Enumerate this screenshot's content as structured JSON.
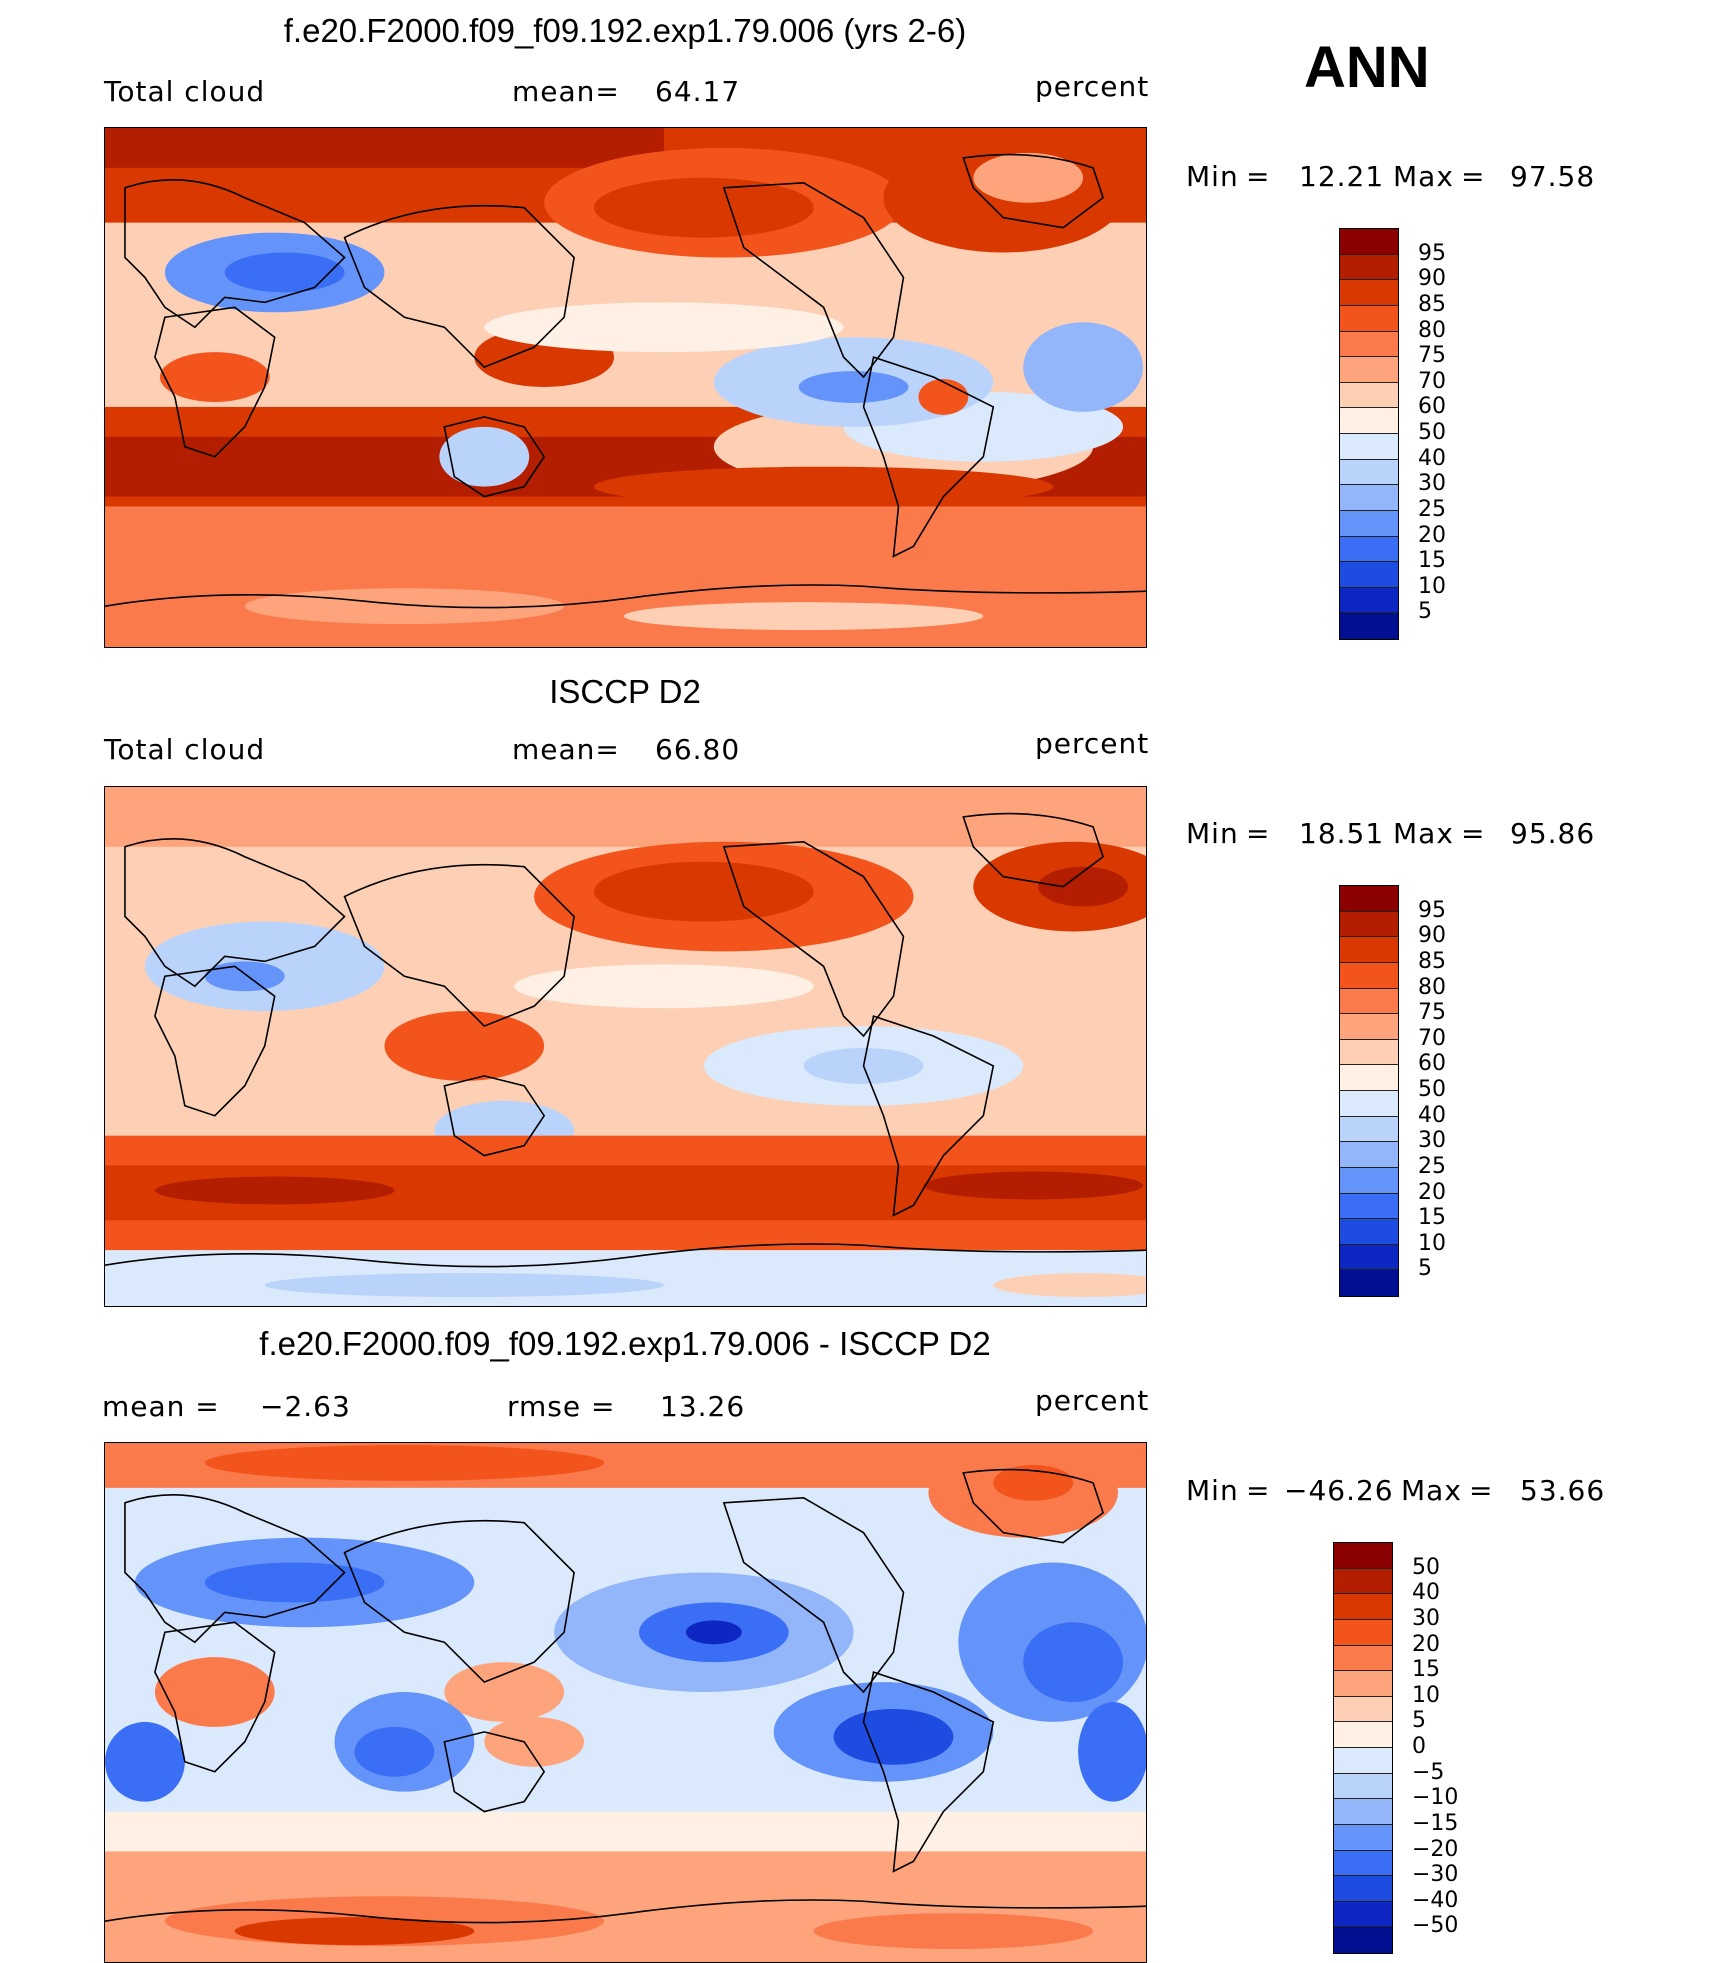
{
  "season": "ANN",
  "panels": [
    {
      "title": "f.e20.F2000.f09_f09.192.exp1.79.006 (yrs 2-6)",
      "left_label": "Total cloud",
      "mean_label": "mean=",
      "mean_value": "64.17",
      "units": "percent",
      "min_label": "Min",
      "min_value": "12.21",
      "max_label": "Max",
      "max_value": "97.58",
      "eq": "=",
      "levels": [
        "95",
        "90",
        "85",
        "80",
        "75",
        "70",
        "60",
        "50",
        "40",
        "30",
        "25",
        "20",
        "15",
        "10",
        "5"
      ],
      "colors": [
        "#8b0000",
        "#b31e00",
        "#d93800",
        "#f2541c",
        "#fb7a4c",
        "#fda47c",
        "#fdd0b6",
        "#fff0e6",
        "#dae9fb",
        "#bad3fb",
        "#93b5fa",
        "#6494fa",
        "#3a6ef5",
        "#1e4be0",
        "#0e27c2",
        "#001090"
      ],
      "map_variant": "model"
    },
    {
      "title": "ISCCP D2",
      "left_label": "Total cloud",
      "mean_label": "mean=",
      "mean_value": "66.80",
      "units": "percent",
      "min_label": "Min",
      "min_value": "18.51",
      "max_label": "Max",
      "max_value": "95.86",
      "eq": "=",
      "levels": [
        "95",
        "90",
        "85",
        "80",
        "75",
        "70",
        "60",
        "50",
        "40",
        "30",
        "25",
        "20",
        "15",
        "10",
        "5"
      ],
      "colors": [
        "#8b0000",
        "#b31e00",
        "#d93800",
        "#f2541c",
        "#fb7a4c",
        "#fda47c",
        "#fdd0b6",
        "#fff0e6",
        "#dae9fb",
        "#bad3fb",
        "#93b5fa",
        "#6494fa",
        "#3a6ef5",
        "#1e4be0",
        "#0e27c2",
        "#001090"
      ],
      "map_variant": "obs"
    },
    {
      "title": "f.e20.F2000.f09_f09.192.exp1.79.006 - ISCCP D2",
      "left_label": "mean =",
      "left_value": "−2.63",
      "mean_label": "rmse =",
      "mean_value": "13.26",
      "units": "percent",
      "min_label": "Min",
      "min_value": "−46.26",
      "max_label": "Max",
      "max_value": "53.66",
      "eq": "=",
      "levels": [
        "50",
        "40",
        "30",
        "20",
        "15",
        "10",
        "5",
        "0",
        "−5",
        "−10",
        "−15",
        "−20",
        "−30",
        "−40",
        "−50"
      ],
      "colors": [
        "#8b0000",
        "#b31e00",
        "#d93800",
        "#f2541c",
        "#fb7a4c",
        "#fda47c",
        "#fdd0b6",
        "#fff0e6",
        "#dae9fb",
        "#bad3fb",
        "#93b5fa",
        "#6494fa",
        "#3a6ef5",
        "#1e4be0",
        "#0e27c2",
        "#001090"
      ],
      "map_variant": "diff"
    }
  ]
}
